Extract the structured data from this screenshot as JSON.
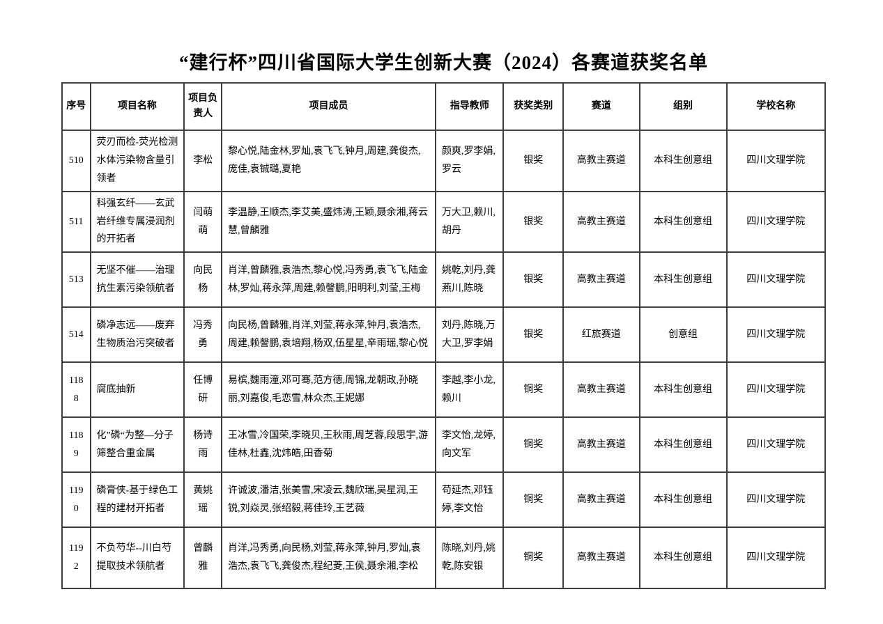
{
  "title": "“建行杯”四川省国际大学生创新大赛（2024）各赛道获奖名单",
  "table": {
    "headers": {
      "no": "序号",
      "project": "项目名称",
      "leader": "项目负责人",
      "members": "项目成员",
      "teachers": "指导教师",
      "award": "获奖类别",
      "track": "赛道",
      "group": "组别",
      "school": "学校名称"
    },
    "rows": [
      {
        "no": "510",
        "project": "荧刃而检-荧光检测水体污染物含量引领者",
        "leader": "李松",
        "members": "黎心悦,陆金林,罗灿,袁飞飞,钟月,周建,龚俊杰,庞佳,袁铖璐,夏艳",
        "teachers": "颜爽,罗李娟,罗云",
        "award": "银奖",
        "track": "高教主赛道",
        "group": "本科生创意组",
        "school": "四川文理学院"
      },
      {
        "no": "511",
        "project": "科强玄纤——玄武岩纤维专属浸润剂的开拓者",
        "leader": "闫萌萌",
        "members": "李温静,王顺杰,李艾美,盛炜涛,王颖,聂余湘,蒋云慧,曾麟雅",
        "teachers": "万大卫,赖川,胡丹",
        "award": "银奖",
        "track": "高教主赛道",
        "group": "本科生创意组",
        "school": "四川文理学院"
      },
      {
        "no": "513",
        "project": "无坚不催——治理抗生素污染领航者",
        "leader": "向民杨",
        "members": "肖洋,曾麟雅,袁浩杰,黎心悦,冯秀勇,袁飞飞,陆金林,罗灿,蒋永萍,周建,赖謦鹏,阳明利,刘莹,王梅",
        "teachers": "姚乾,刘丹,龚燕川,陈晓",
        "award": "银奖",
        "track": "高教主赛道",
        "group": "本科生创意组",
        "school": "四川文理学院"
      },
      {
        "no": "514",
        "project": "磷净志远——废弃生物质治污突破者",
        "leader": "冯秀勇",
        "members": "向民杨,曾麟雅,肖洋,刘莹,蒋永萍,钟月,袁浩杰,周建,赖謦鹏,袁培翔,杨双,伍星星,辛雨瑶,黎心悦",
        "teachers": "刘丹,陈晓,万大卫,罗李娟",
        "award": "银奖",
        "track": "红旅赛道",
        "group": "创意组",
        "school": "四川文理学院"
      },
      {
        "no": "1188",
        "project": "腐底抽新",
        "leader": "任博研",
        "members": "易槟,魏雨潼,邓可骞,范方德,周锦,龙朝政,孙晓丽,刘嘉俊,毛恋雪,林众杰,王妮娜",
        "teachers": "李越,李小龙,赖川",
        "award": "铜奖",
        "track": "高教主赛道",
        "group": "本科生创意组",
        "school": "四川文理学院"
      },
      {
        "no": "1189",
        "project": "化”磷“为整—分子筛整合重金属",
        "leader": "杨诗雨",
        "members": "王冰雪,冷国荣,李晓贝,王秋雨,周芝蓉,段思宇,游佳林,杜鑫,沈炜皓,田香菊",
        "teachers": "李文怡,龙婷,向文军",
        "award": "铜奖",
        "track": "高教主赛道",
        "group": "本科生创意组",
        "school": "四川文理学院"
      },
      {
        "no": "1190",
        "project": "磷膏侠-基于绿色工程的建材开拓者",
        "leader": "黄姚瑶",
        "members": "许诚波,潘洁,张美雪,宋凌云,魏欣瑞,吴星润,王锐,刘焱灵,张绍毅,蒋佳玲,王艺薇",
        "teachers": "苟延杰,邓钰婷,李文怡",
        "award": "铜奖",
        "track": "高教主赛道",
        "group": "本科生创意组",
        "school": "四川文理学院"
      },
      {
        "no": "1192",
        "project": "不负芍华--川白芍提取技术领航者",
        "leader": "曾麟雅",
        "members": "肖洋,冯秀勇,向民杨,刘莹,蒋永萍,钟月,罗灿,袁浩杰,袁飞飞,龚俊杰,程纪菱,王侯,聂余湘,李松",
        "teachers": "陈晓,刘丹,姚乾,陈安银",
        "award": "铜奖",
        "track": "高教主赛道",
        "group": "本科生创意组",
        "school": "四川文理学院"
      }
    ]
  }
}
